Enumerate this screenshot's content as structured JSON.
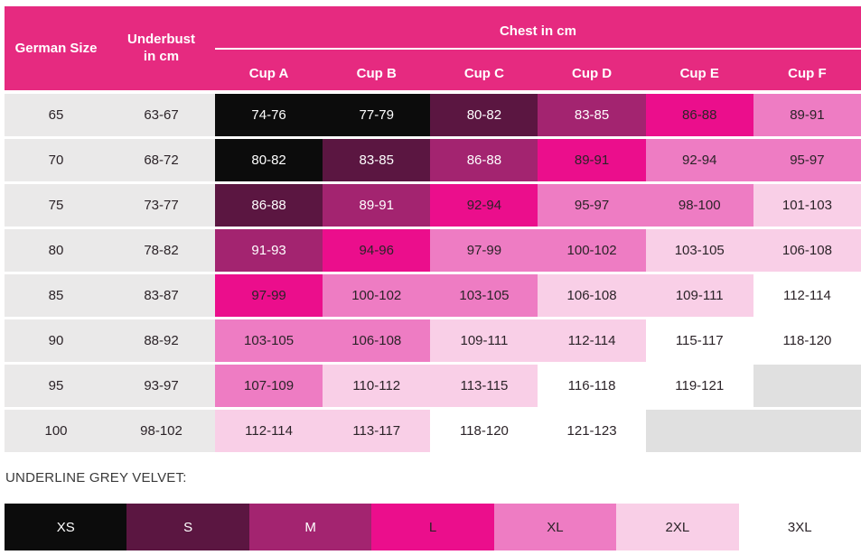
{
  "chart_data": {
    "type": "table",
    "col_headers": {
      "german_size": "German Size",
      "underbust": "Underbust\nin cm",
      "chest_group": "Chest in cm",
      "cups": [
        "Cup A",
        "Cup B",
        "Cup C",
        "Cup D",
        "Cup E",
        "Cup F"
      ]
    },
    "rows": [
      {
        "german_size": "65",
        "underbust": "63-67",
        "chest": [
          {
            "v": "74-76",
            "sw": "XS"
          },
          {
            "v": "77-79",
            "sw": "XS"
          },
          {
            "v": "80-82",
            "sw": "S"
          },
          {
            "v": "83-85",
            "sw": "M"
          },
          {
            "v": "86-88",
            "sw": "L"
          },
          {
            "v": "89-91",
            "sw": "XL"
          }
        ]
      },
      {
        "german_size": "70",
        "underbust": "68-72",
        "chest": [
          {
            "v": "80-82",
            "sw": "XS"
          },
          {
            "v": "83-85",
            "sw": "S"
          },
          {
            "v": "86-88",
            "sw": "M"
          },
          {
            "v": "89-91",
            "sw": "L"
          },
          {
            "v": "92-94",
            "sw": "XL"
          },
          {
            "v": "95-97",
            "sw": "XL"
          }
        ]
      },
      {
        "german_size": "75",
        "underbust": "73-77",
        "chest": [
          {
            "v": "86-88",
            "sw": "S"
          },
          {
            "v": "89-91",
            "sw": "M"
          },
          {
            "v": "92-94",
            "sw": "L"
          },
          {
            "v": "95-97",
            "sw": "XL"
          },
          {
            "v": "98-100",
            "sw": "XL"
          },
          {
            "v": "101-103",
            "sw": "2XL"
          }
        ]
      },
      {
        "german_size": "80",
        "underbust": "78-82",
        "chest": [
          {
            "v": "91-93",
            "sw": "M"
          },
          {
            "v": "94-96",
            "sw": "L"
          },
          {
            "v": "97-99",
            "sw": "XL"
          },
          {
            "v": "100-102",
            "sw": "XL"
          },
          {
            "v": "103-105",
            "sw": "2XL"
          },
          {
            "v": "106-108",
            "sw": "2XL"
          }
        ]
      },
      {
        "german_size": "85",
        "underbust": "83-87",
        "chest": [
          {
            "v": "97-99",
            "sw": "L"
          },
          {
            "v": "100-102",
            "sw": "XL"
          },
          {
            "v": "103-105",
            "sw": "XL"
          },
          {
            "v": "106-108",
            "sw": "2XL"
          },
          {
            "v": "109-111",
            "sw": "2XL"
          },
          {
            "v": "112-114",
            "sw": "3XL"
          }
        ]
      },
      {
        "german_size": "90",
        "underbust": "88-92",
        "chest": [
          {
            "v": "103-105",
            "sw": "XL"
          },
          {
            "v": "106-108",
            "sw": "XL"
          },
          {
            "v": "109-111",
            "sw": "2XL"
          },
          {
            "v": "112-114",
            "sw": "2XL"
          },
          {
            "v": "115-117",
            "sw": "3XL"
          },
          {
            "v": "118-120",
            "sw": "3XL"
          }
        ]
      },
      {
        "german_size": "95",
        "underbust": "93-97",
        "chest": [
          {
            "v": "107-109",
            "sw": "XL"
          },
          {
            "v": "110-112",
            "sw": "2XL"
          },
          {
            "v": "113-115",
            "sw": "2XL"
          },
          {
            "v": "116-118",
            "sw": "3XL"
          },
          {
            "v": "119-121",
            "sw": "3XL"
          },
          {
            "v": "",
            "sw": ""
          }
        ]
      },
      {
        "german_size": "100",
        "underbust": "98-102",
        "chest": [
          {
            "v": "112-114",
            "sw": "2XL"
          },
          {
            "v": "113-117",
            "sw": "2XL"
          },
          {
            "v": "118-120",
            "sw": "3XL"
          },
          {
            "v": "121-123",
            "sw": "3XL"
          },
          {
            "v": "",
            "sw": ""
          },
          {
            "v": "",
            "sw": ""
          }
        ]
      }
    ],
    "legend": {
      "title": "UNDERLINE GREY VELVET:",
      "items": [
        {
          "label": "XS",
          "color": "#0c0c0c"
        },
        {
          "label": "S",
          "color": "#5b1641"
        },
        {
          "label": "M",
          "color": "#a32470"
        },
        {
          "label": "L",
          "color": "#eb0e8c"
        },
        {
          "label": "XL",
          "color": "#ee7cc3"
        },
        {
          "label": "2XL",
          "color": "#f9cfe7"
        },
        {
          "label": "3XL",
          "color": "#ffffff"
        }
      ]
    },
    "palette": {
      "header_bg": "#e62a80",
      "row_label_bg": "#eae9e9",
      "empty_cell_bg": "#e0e0e0",
      "dark_text": "#2b2328",
      "light_text": "#ffffff",
      "separator": "#ffffff"
    }
  }
}
